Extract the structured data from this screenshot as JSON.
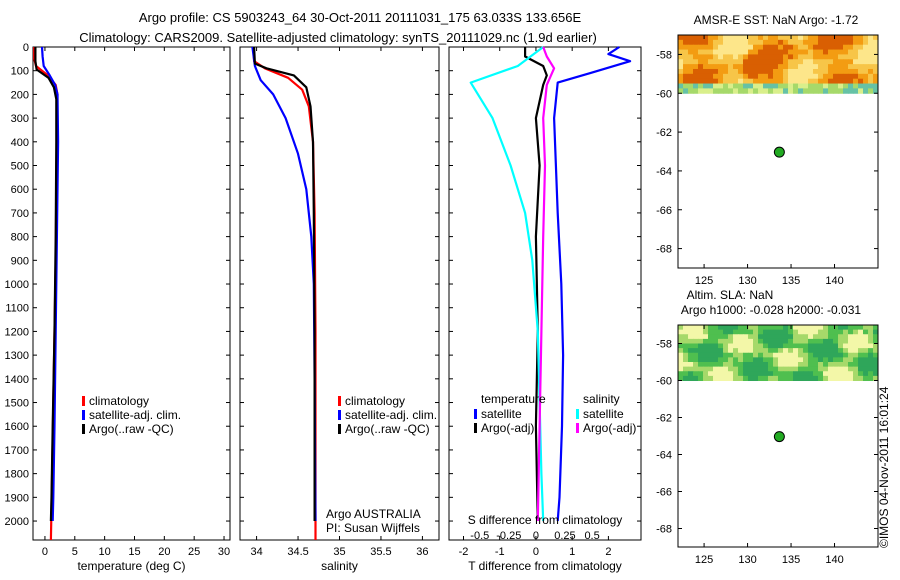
{
  "header": {
    "line1": "Argo profile: CS 5903243_64 30-Oct-2011 20111031_175 63.033S 133.656E",
    "line2": "Climatology: CARS2009. Satellite-adjusted climatology: synTS_20111029.nc (1.9d earlier)"
  },
  "side_label": "©IMOS 04-Nov-2011 16:01:24",
  "colors": {
    "red": "#ff0000",
    "blue": "#0000ff",
    "black": "#000000",
    "cyan": "#00ffff",
    "magenta": "#ff00ff",
    "dot": "#22aa22"
  },
  "chart_data": [
    {
      "type": "line",
      "id": "temp",
      "xlabel": "temperature (deg C)",
      "ylabel": "",
      "xlim": [
        -2,
        31
      ],
      "ylim": [
        2080,
        0
      ],
      "xticks": [
        0,
        5,
        10,
        15,
        20,
        25,
        30
      ],
      "yticks": [
        0,
        100,
        200,
        300,
        400,
        500,
        600,
        700,
        800,
        900,
        1000,
        1100,
        1200,
        1300,
        1400,
        1500,
        1600,
        1700,
        1800,
        1900,
        2000
      ],
      "legend": [
        "climatology",
        "satellite-adj. clim.",
        "Argo(..raw -QC)"
      ],
      "series": [
        {
          "name": "climatology",
          "color": "red",
          "points": [
            [
              -1.8,
              0
            ],
            [
              -1.8,
              50
            ],
            [
              -1.5,
              80
            ],
            [
              0.5,
              120
            ],
            [
              1.8,
              160
            ],
            [
              2.1,
              200
            ],
            [
              2.0,
              300
            ],
            [
              1.9,
              600
            ],
            [
              1.8,
              900
            ],
            [
              1.6,
              1200
            ],
            [
              1.4,
              1500
            ],
            [
              1.2,
              1800
            ],
            [
              1.0,
              2080
            ]
          ]
        },
        {
          "name": "satellite-adj. clim.",
          "color": "blue",
          "points": [
            [
              -0.5,
              0
            ],
            [
              -0.4,
              40
            ],
            [
              -0.2,
              80
            ],
            [
              0.8,
              120
            ],
            [
              1.7,
              160
            ],
            [
              2.1,
              200
            ],
            [
              2.2,
              400
            ],
            [
              2.0,
              800
            ],
            [
              1.8,
              1200
            ],
            [
              1.6,
              1600
            ],
            [
              1.4,
              1900
            ],
            [
              1.3,
              2000
            ]
          ]
        },
        {
          "name": "Argo(..raw -QC)",
          "color": "black",
          "points": [
            [
              -1.6,
              0
            ],
            [
              -1.6,
              60
            ],
            [
              -1.4,
              95
            ],
            [
              0.6,
              130
            ],
            [
              1.5,
              170
            ],
            [
              1.9,
              220
            ],
            [
              1.9,
              400
            ],
            [
              1.8,
              800
            ],
            [
              1.6,
              1200
            ],
            [
              1.3,
              1600
            ],
            [
              1.1,
              1900
            ],
            [
              1.0,
              2000
            ]
          ]
        }
      ]
    },
    {
      "type": "line",
      "id": "sal",
      "xlabel": "salinity",
      "ylabel": "",
      "xlim": [
        33.8,
        36.2
      ],
      "ylim": [
        2080,
        0
      ],
      "xticks": [
        34,
        34.5,
        35,
        35.5,
        36
      ],
      "xtick_labels": [
        "34",
        "34.5",
        "35",
        "35.5",
        "36"
      ],
      "legend": [
        "climatology",
        "satellite-adj. clim.",
        "Argo(..raw -QC)"
      ],
      "annotation": [
        "Argo AUSTRALIA",
        "PI: Susan Wijffels"
      ],
      "series": [
        {
          "name": "climatology",
          "color": "red",
          "points": [
            [
              33.96,
              0
            ],
            [
              33.97,
              60
            ],
            [
              34.1,
              90
            ],
            [
              34.38,
              130
            ],
            [
              34.55,
              180
            ],
            [
              34.63,
              250
            ],
            [
              34.68,
              400
            ],
            [
              34.7,
              700
            ],
            [
              34.71,
              1200
            ],
            [
              34.71,
              2080
            ]
          ]
        },
        {
          "name": "satellite-adj. clim.",
          "color": "blue",
          "points": [
            [
              33.95,
              0
            ],
            [
              33.98,
              80
            ],
            [
              34.05,
              140
            ],
            [
              34.2,
              200
            ],
            [
              34.35,
              300
            ],
            [
              34.5,
              450
            ],
            [
              34.6,
              600
            ],
            [
              34.66,
              800
            ],
            [
              34.69,
              1000
            ],
            [
              34.7,
              1400
            ],
            [
              34.71,
              2000
            ]
          ]
        },
        {
          "name": "Argo(..raw -QC)",
          "color": "black",
          "points": [
            [
              33.97,
              0
            ],
            [
              33.98,
              70
            ],
            [
              34.12,
              90
            ],
            [
              34.45,
              120
            ],
            [
              34.6,
              170
            ],
            [
              34.65,
              250
            ],
            [
              34.68,
              400
            ],
            [
              34.69,
              700
            ],
            [
              34.7,
              1200
            ],
            [
              34.7,
              2000
            ]
          ]
        }
      ]
    },
    {
      "type": "line",
      "id": "diff",
      "xlabel": "T difference from climatology",
      "xlabel_top": "S difference from climatology",
      "xlim": [
        -2.4,
        2.9
      ],
      "ylim": [
        2080,
        0
      ],
      "xticks": [
        -2,
        -1,
        0,
        1,
        2
      ],
      "xtick_labels": [
        "-2",
        "-1",
        "0",
        "1",
        "2"
      ],
      "xticks_top": [
        -1.55,
        -0.75,
        0,
        0.8,
        1.55
      ],
      "xtick_labels_top": [
        "-0.5",
        "-0.25",
        "0",
        "0.25",
        "0.5"
      ],
      "legend_left_title": "temperature",
      "legend_right_title": "salinity",
      "legend_left": [
        "satellite",
        "Argo(-adj)"
      ],
      "legend_right": [
        "satellite",
        "Argo(-adj)"
      ],
      "series": [
        {
          "name": "temperature satellite",
          "color": "blue",
          "points": [
            [
              2.3,
              0
            ],
            [
              2.0,
              30
            ],
            [
              2.6,
              60
            ],
            [
              1.5,
              110
            ],
            [
              0.6,
              150
            ],
            [
              0.5,
              300
            ],
            [
              0.55,
              500
            ],
            [
              0.6,
              700
            ],
            [
              0.7,
              1000
            ],
            [
              0.75,
              1300
            ],
            [
              0.72,
              1600
            ],
            [
              0.65,
              1900
            ],
            [
              0.6,
              2000
            ]
          ]
        },
        {
          "name": "temperature Argo(-adj)",
          "color": "black",
          "points": [
            [
              -0.3,
              0
            ],
            [
              -0.3,
              40
            ],
            [
              0.2,
              80
            ],
            [
              0.3,
              120
            ],
            [
              0.2,
              160
            ],
            [
              0.0,
              300
            ],
            [
              0.1,
              500
            ],
            [
              0.0,
              800
            ],
            [
              0.05,
              1200
            ],
            [
              0.0,
              1600
            ],
            [
              0.05,
              2000
            ]
          ]
        },
        {
          "name": "salinity satellite",
          "color": "cyan",
          "points": [
            [
              0.2,
              0
            ],
            [
              -0.5,
              80
            ],
            [
              -1.8,
              150
            ],
            [
              -1.2,
              300
            ],
            [
              -0.7,
              500
            ],
            [
              -0.3,
              700
            ],
            [
              -0.1,
              900
            ],
            [
              0.05,
              1200
            ],
            [
              0.1,
              1500
            ],
            [
              0.15,
              1800
            ],
            [
              0.2,
              2000
            ]
          ]
        },
        {
          "name": "salinity Argo(-adj)",
          "color": "magenta",
          "points": [
            [
              0.2,
              0
            ],
            [
              0.3,
              40
            ],
            [
              0.5,
              90
            ],
            [
              0.3,
              160
            ],
            [
              0.2,
              300
            ],
            [
              0.25,
              500
            ],
            [
              0.2,
              800
            ],
            [
              0.15,
              1200
            ],
            [
              0.1,
              1600
            ],
            [
              0.05,
              2000
            ]
          ]
        }
      ]
    },
    {
      "type": "heatmap",
      "id": "sst",
      "title": "AMSR-E SST: NaN Argo: -1.72",
      "xlim": [
        122,
        145
      ],
      "ylim": [
        -69,
        -57
      ],
      "xticks": [
        125,
        130,
        135,
        140
      ],
      "yticks": [
        -58,
        -60,
        -62,
        -64,
        -66,
        -68
      ],
      "data_lat_range": [
        -60,
        -57
      ],
      "palette": "warm",
      "argo_point": [
        133.656,
        -63.033
      ]
    },
    {
      "type": "heatmap",
      "id": "sla",
      "title": "Altim. SLA: NaN",
      "subtitle": "Argo h1000: -0.028 h2000: -0.031",
      "xlim": [
        122,
        145
      ],
      "ylim": [
        -69,
        -57
      ],
      "xticks": [
        125,
        130,
        135,
        140
      ],
      "yticks": [
        -58,
        -60,
        -62,
        -64,
        -66,
        -68
      ],
      "data_lat_range": [
        -60,
        -57
      ],
      "palette": "green",
      "argo_point": [
        133.656,
        -63.033
      ]
    }
  ]
}
